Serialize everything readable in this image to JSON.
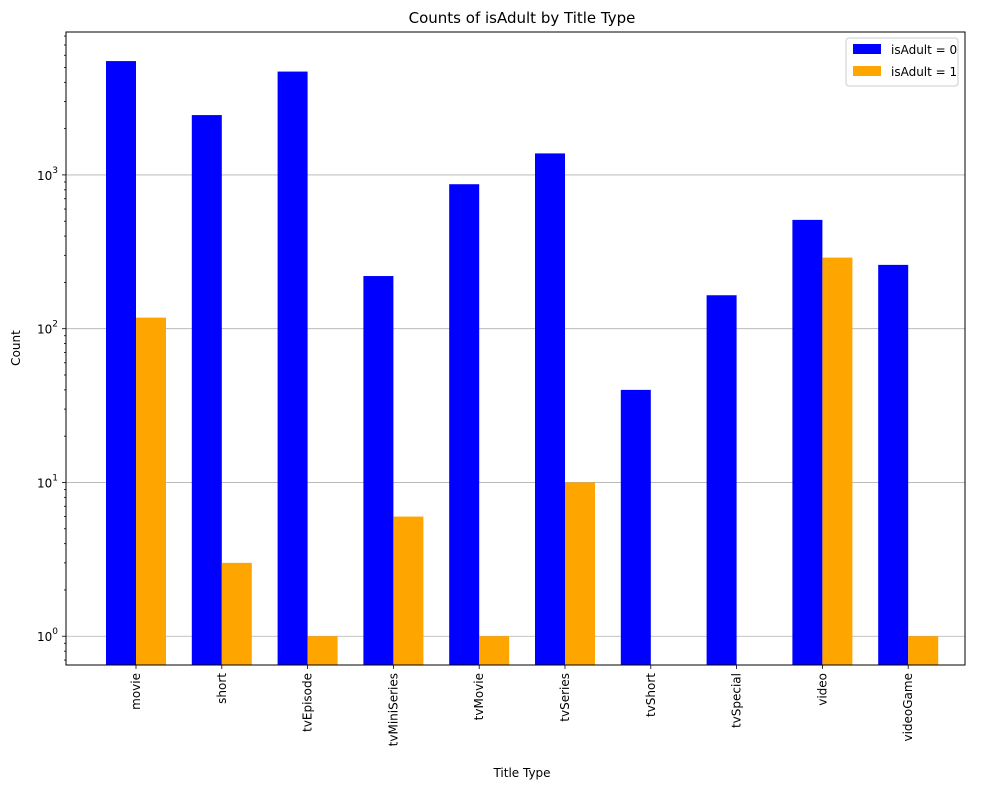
{
  "chart_data": {
    "type": "bar",
    "title": "Counts of isAdult by Title Type",
    "xlabel": "Title Type",
    "ylabel": "Count",
    "yscale": "log",
    "ylim": [
      0.65,
      8500
    ],
    "grid": "y-major",
    "legend_position": "top-right",
    "categories": [
      "movie",
      "short",
      "tvEpisode",
      "tvMiniSeries",
      "tvMovie",
      "tvSeries",
      "tvShort",
      "tvSpecial",
      "video",
      "videoGame"
    ],
    "series": [
      {
        "name": "isAdult = 0",
        "color": "#0000ff",
        "values": [
          5500,
          2450,
          4700,
          220,
          870,
          1380,
          40,
          165,
          510,
          260
        ]
      },
      {
        "name": "isAdult = 1",
        "color": "#ffa500",
        "values": [
          118,
          3,
          1,
          6,
          1,
          10,
          null,
          null,
          290,
          1
        ]
      }
    ],
    "yticks": [
      {
        "base": "10",
        "exp": "0",
        "value": 1
      },
      {
        "base": "10",
        "exp": "1",
        "value": 10
      },
      {
        "base": "10",
        "exp": "2",
        "value": 100
      },
      {
        "base": "10",
        "exp": "3",
        "value": 1000
      }
    ]
  }
}
